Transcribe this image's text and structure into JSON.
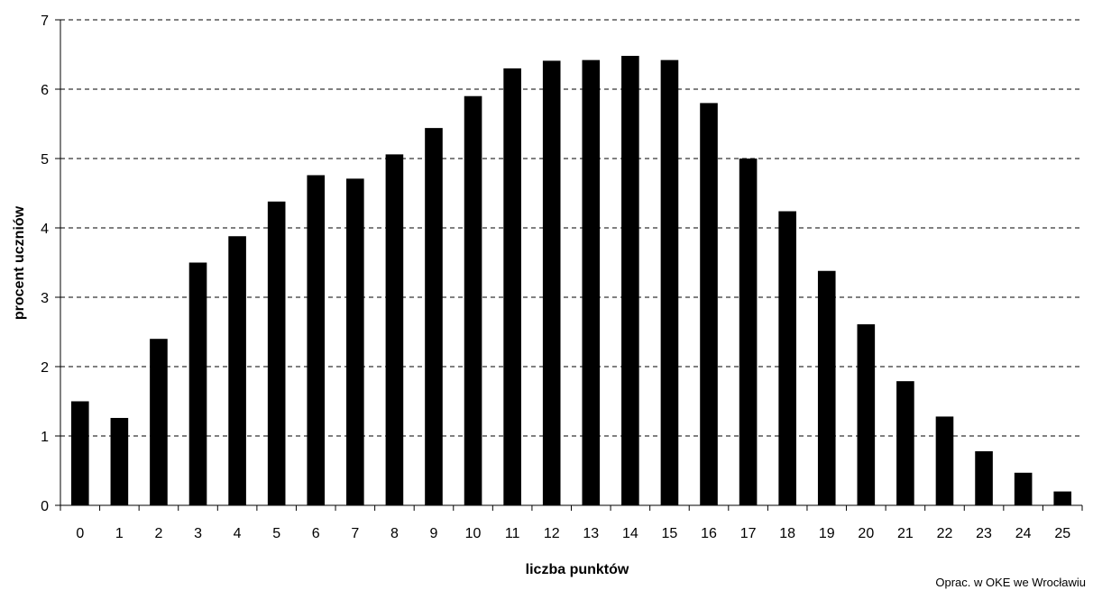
{
  "chart_data": {
    "type": "bar",
    "title": "",
    "xlabel": "liczba punktów",
    "ylabel": "procent uczniów",
    "categories": [
      "0",
      "1",
      "2",
      "3",
      "4",
      "5",
      "6",
      "7",
      "8",
      "9",
      "10",
      "11",
      "12",
      "13",
      "14",
      "15",
      "16",
      "17",
      "18",
      "19",
      "20",
      "21",
      "22",
      "23",
      "24",
      "25"
    ],
    "values": [
      1.5,
      1.26,
      2.4,
      3.5,
      3.88,
      4.38,
      4.76,
      4.71,
      5.06,
      5.44,
      5.9,
      6.3,
      6.41,
      6.42,
      6.48,
      6.42,
      5.8,
      5.0,
      4.24,
      3.38,
      2.61,
      1.79,
      1.28,
      0.78,
      0.47,
      0.2
    ],
    "ylim": [
      0,
      7
    ],
    "yticks": [
      "0",
      "1",
      "2",
      "3",
      "4",
      "5",
      "6",
      "7"
    ],
    "grid": "horizontal dashed",
    "legend": "none",
    "bar_color": "#000000"
  },
  "footnote": "Oprac. w OKE we Wrocławiu"
}
